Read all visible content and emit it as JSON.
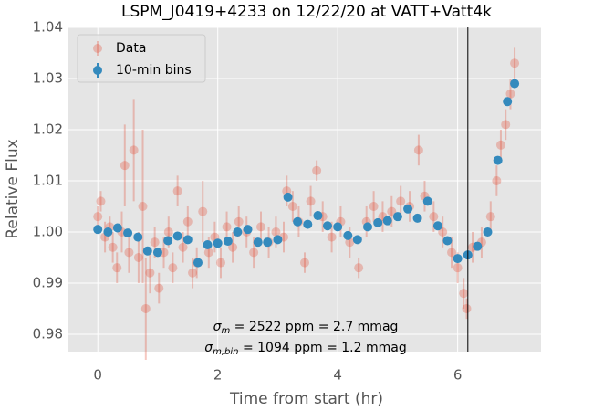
{
  "chart_data": {
    "type": "scatter",
    "title": "LSPM_J0419+4233 on 12/22/20 at VATT+Vatt4k",
    "xlabel": "Time from start (hr)",
    "ylabel": "Relative Flux",
    "xlim": [
      -0.49,
      7.39
    ],
    "ylim": [
      0.9766,
      1.04
    ],
    "xticks": [
      0,
      2,
      4,
      6
    ],
    "yticks": [
      0.98,
      0.99,
      {
        "value": 1,
        "label": "1.00"
      },
      1.01,
      1.02,
      1.03,
      1.04
    ],
    "grid": true,
    "legend": "upper left",
    "vline": 6.17,
    "annotations": [
      {
        "symbol": "σ",
        "subscript": "m",
        "text": " = 2522 ppm = 2.7 mmag"
      },
      {
        "symbol": "σ",
        "subscript": "m,bin",
        "text": " = 1094 ppm = 1.2 mmag"
      }
    ],
    "series": [
      {
        "name": "Data",
        "color": "#e24a33",
        "x": [
          0.0,
          0.05,
          0.12,
          0.2,
          0.25,
          0.32,
          0.4,
          0.45,
          0.52,
          0.6,
          0.68,
          0.75,
          0.8,
          0.87,
          0.95,
          1.02,
          1.1,
          1.18,
          1.25,
          1.33,
          1.42,
          1.5,
          1.58,
          1.65,
          1.75,
          1.85,
          1.95,
          2.05,
          2.15,
          2.25,
          2.35,
          2.48,
          2.6,
          2.72,
          2.85,
          2.97,
          3.1,
          3.15,
          3.25,
          3.35,
          3.45,
          3.55,
          3.65,
          3.75,
          3.9,
          4.05,
          4.2,
          4.35,
          4.48,
          4.6,
          4.75,
          4.9,
          5.05,
          5.2,
          5.35,
          5.45,
          5.6,
          5.75,
          5.9,
          6.0,
          6.1,
          6.15,
          6.25,
          6.4,
          6.55,
          6.65,
          6.72,
          6.8,
          6.88,
          6.95
        ],
        "values": [
          1.003,
          1.006,
          0.999,
          1.001,
          0.997,
          0.993,
          1.0,
          1.013,
          0.996,
          1.016,
          0.995,
          1.005,
          0.985,
          0.992,
          0.998,
          0.989,
          0.996,
          1.0,
          0.993,
          1.008,
          0.997,
          1.002,
          0.992,
          0.994,
          1.004,
          0.996,
          0.999,
          0.994,
          1.001,
          0.997,
          1.002,
          1.0,
          0.996,
          1.001,
          0.998,
          1.0,
          0.999,
          1.008,
          1.005,
          1.002,
          0.994,
          1.006,
          1.012,
          1.003,
          0.999,
          1.002,
          0.998,
          0.993,
          1.002,
          1.005,
          1.003,
          1.004,
          1.006,
          1.005,
          1.016,
          1.007,
          1.003,
          1.0,
          0.996,
          0.993,
          0.988,
          0.985,
          0.997,
          0.998,
          1.003,
          1.01,
          1.017,
          1.021,
          1.027,
          1.033
        ],
        "errors": [
          0.002,
          0.002,
          0.003,
          0.002,
          0.003,
          0.003,
          0.004,
          0.008,
          0.004,
          0.01,
          0.005,
          0.015,
          0.01,
          0.004,
          0.003,
          0.003,
          0.003,
          0.003,
          0.003,
          0.003,
          0.003,
          0.003,
          0.003,
          0.003,
          0.006,
          0.003,
          0.003,
          0.003,
          0.003,
          0.003,
          0.003,
          0.003,
          0.003,
          0.003,
          0.003,
          0.003,
          0.003,
          0.003,
          0.003,
          0.003,
          0.002,
          0.003,
          0.002,
          0.003,
          0.003,
          0.003,
          0.003,
          0.002,
          0.003,
          0.003,
          0.003,
          0.003,
          0.003,
          0.003,
          0.003,
          0.003,
          0.003,
          0.003,
          0.003,
          0.003,
          0.003,
          0.002,
          0.003,
          0.003,
          0.003,
          0.003,
          0.003,
          0.003,
          0.003,
          0.003
        ]
      },
      {
        "name": "10-min bins",
        "color": "#348abd",
        "x": [
          0.0,
          0.17,
          0.33,
          0.5,
          0.67,
          0.83,
          1.0,
          1.17,
          1.33,
          1.5,
          1.67,
          1.83,
          2.0,
          2.17,
          2.33,
          2.5,
          2.67,
          2.83,
          3.0,
          3.17,
          3.33,
          3.5,
          3.67,
          3.83,
          4.0,
          4.17,
          4.33,
          4.5,
          4.67,
          4.83,
          5.0,
          5.17,
          5.33,
          5.5,
          5.67,
          5.83,
          6.0,
          6.17,
          6.33,
          6.5,
          6.67,
          6.83,
          6.95
        ],
        "values": [
          1.0005,
          1.0,
          1.0008,
          0.9998,
          0.999,
          0.9963,
          0.996,
          0.9983,
          0.9992,
          0.9985,
          0.994,
          0.9975,
          0.9978,
          0.9982,
          1.0,
          1.0005,
          0.998,
          0.998,
          0.9985,
          1.0068,
          1.002,
          1.0015,
          1.0032,
          1.0012,
          1.001,
          0.9993,
          0.9985,
          1.001,
          1.0018,
          1.0022,
          1.003,
          1.0045,
          1.0027,
          1.006,
          1.0012,
          0.9983,
          0.9948,
          0.9955,
          0.9972,
          1.0,
          1.014,
          1.0255,
          1.029
        ],
        "errors": [
          0.0007,
          0.0007,
          0.0007,
          0.0007,
          0.0007,
          0.0007,
          0.0007,
          0.0007,
          0.0007,
          0.0007,
          0.0007,
          0.0007,
          0.0007,
          0.0007,
          0.0007,
          0.0007,
          0.0007,
          0.0007,
          0.0007,
          0.0007,
          0.0007,
          0.0007,
          0.0007,
          0.0007,
          0.0007,
          0.0007,
          0.0007,
          0.0007,
          0.0007,
          0.0007,
          0.0007,
          0.0007,
          0.0007,
          0.0007,
          0.0007,
          0.0007,
          0.0007,
          0.0007,
          0.0007,
          0.0007,
          0.0007,
          0.0007,
          0.0007
        ]
      }
    ]
  }
}
